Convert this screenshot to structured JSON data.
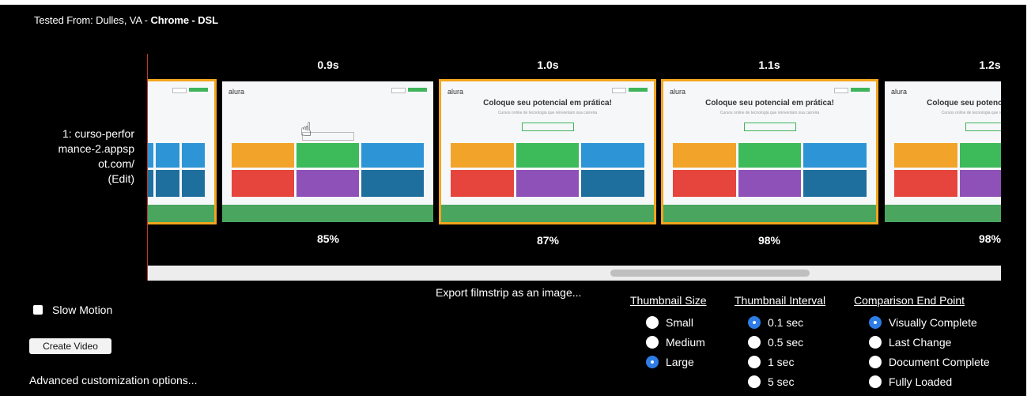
{
  "header": {
    "tested_prefix": "Tested From: Dulles, VA - ",
    "tested_bold": "Chrome - DSL"
  },
  "test": {
    "url_lines": [
      "1: curso-perfor",
      "mance-2.appsp",
      "ot.com/"
    ],
    "edit_label": "(Edit)"
  },
  "filmstrip": {
    "frames": [
      {
        "time": "0.9s",
        "percent": "85%"
      },
      {
        "time": "1.0s",
        "percent": "87%"
      },
      {
        "time": "1.1s",
        "percent": "98%"
      },
      {
        "time": "1.2s",
        "percent": "98%"
      }
    ],
    "thumb": {
      "logo": "alura",
      "headline": "Coloque seu potencial em prática!",
      "subline": "Cursos online de tecnologia que reinventam sua carreira",
      "tile_colors": [
        "#f2a32a",
        "#3dba5a",
        "#2d95d6",
        "#e5453c",
        "#8e51b8",
        "#1f6f9e"
      ]
    },
    "export_link": "Export filmstrip as an image..."
  },
  "controls": {
    "slow_motion_label": "Slow Motion",
    "slow_motion_checked": false,
    "create_video_label": "Create Video",
    "advanced_link": "Advanced customization options..."
  },
  "options": {
    "thumbnail_size": {
      "title": "Thumbnail Size",
      "items": [
        "Small",
        "Medium",
        "Large"
      ],
      "selected": "Large"
    },
    "thumbnail_interval": {
      "title": "Thumbnail Interval",
      "items": [
        "0.1 sec",
        "0.5 sec",
        "1 sec",
        "5 sec"
      ],
      "selected": "0.1 sec"
    },
    "comparison_end_point": {
      "title": "Comparison End Point",
      "items": [
        "Visually Complete",
        "Last Change",
        "Document Complete",
        "Fully Loaded"
      ],
      "selected": "Visually Complete"
    }
  },
  "colors": {
    "background": "#000000",
    "changed_frame_border": "#f2a51c",
    "radio_selected": "#2e7ce6"
  }
}
